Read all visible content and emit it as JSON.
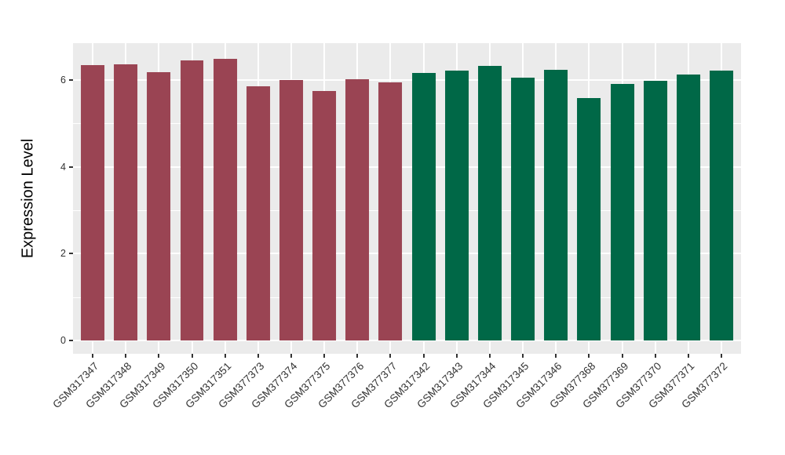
{
  "chart_data": {
    "type": "bar",
    "title": "",
    "xlabel": "",
    "ylabel": "Expression Level",
    "ylim": [
      0,
      6.8
    ],
    "yticks": [
      0,
      2,
      4,
      6
    ],
    "yticks_minor": [
      1,
      3,
      5
    ],
    "grid": "on",
    "legend_position": "none",
    "panel_background": "#EBEBEB",
    "gridline_color": "#FFFFFF",
    "categories": [
      "GSM317347",
      "GSM317348",
      "GSM317349",
      "GSM317350",
      "GSM317351",
      "GSM377373",
      "GSM377374",
      "GSM377375",
      "GSM377376",
      "GSM377377",
      "GSM317342",
      "GSM317343",
      "GSM317344",
      "GSM317345",
      "GSM317346",
      "GSM377368",
      "GSM377369",
      "GSM377370",
      "GSM377371",
      "GSM377372"
    ],
    "values": [
      6.34,
      6.36,
      6.18,
      6.45,
      6.49,
      5.86,
      6.0,
      5.75,
      6.02,
      5.95,
      6.16,
      6.22,
      6.32,
      6.06,
      6.24,
      5.59,
      5.9,
      5.98,
      6.13,
      6.22
    ],
    "bar_groups": [
      "group1",
      "group1",
      "group1",
      "group1",
      "group1",
      "group1",
      "group1",
      "group1",
      "group1",
      "group1",
      "group2",
      "group2",
      "group2",
      "group2",
      "group2",
      "group2",
      "group2",
      "group2",
      "group2",
      "group2"
    ],
    "group_colors": {
      "group1": "#9A4453",
      "group2": "#006847"
    }
  },
  "colors": {
    "axis_text": "#333333",
    "axis_title": "#000000",
    "tick_mark": "#333333"
  }
}
